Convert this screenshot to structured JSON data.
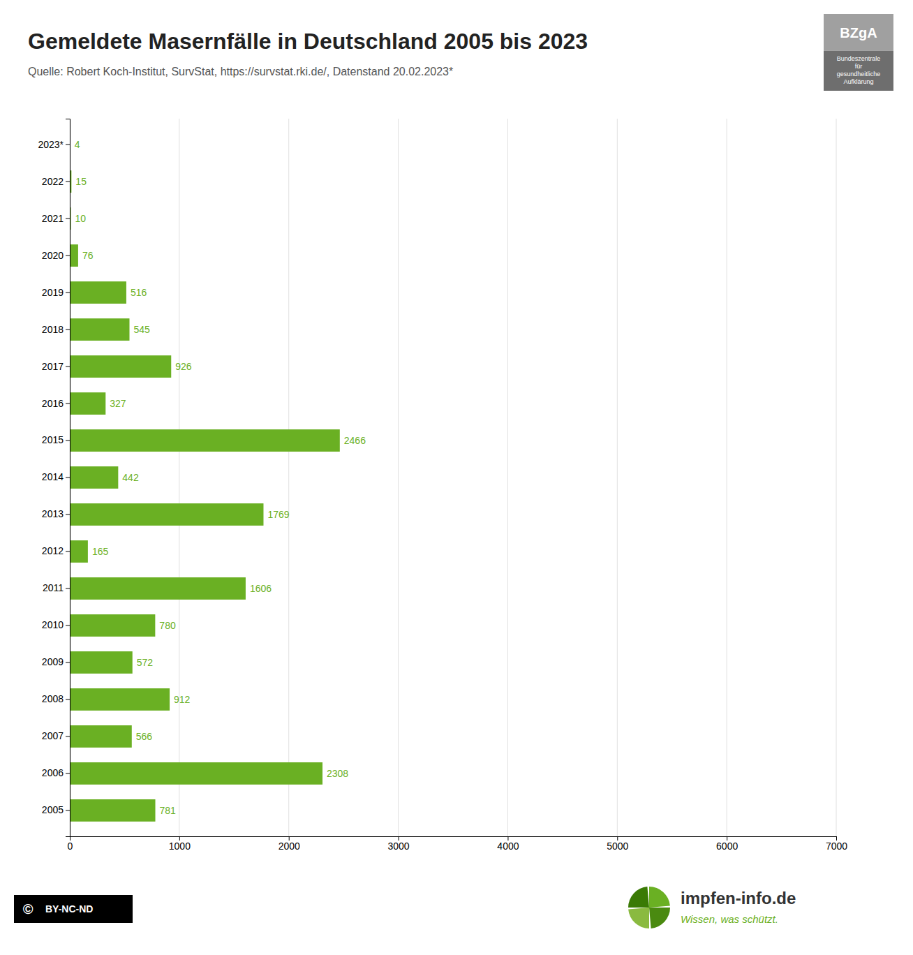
{
  "chart_data": {
    "type": "bar",
    "orientation": "horizontal",
    "title": "Gemeldete Masernfälle in Deutschland 2005 bis 2023",
    "subtitle": "Quelle: Robert Koch-Institut, SurvStat, https://survstat.rki.de/, Datenstand 20.02.2023*",
    "categories": [
      "2023*",
      "2022",
      "2021",
      "2020",
      "2019",
      "2018",
      "2017",
      "2016",
      "2015",
      "2014",
      "2013",
      "2012",
      "2011",
      "2010",
      "2009",
      "2008",
      "2007",
      "2006",
      "2005"
    ],
    "values": [
      4,
      15,
      10,
      76,
      516,
      545,
      926,
      327,
      2466,
      442,
      1769,
      165,
      1606,
      780,
      572,
      912,
      566,
      2308,
      781
    ],
    "color": "#6ab023",
    "xlim": [
      0,
      7000
    ],
    "xticks": [
      0,
      1000,
      2000,
      3000,
      4000,
      5000,
      6000,
      7000
    ],
    "grid": true,
    "data_labels": true,
    "annotations": [
      "BZgA",
      "Bundeszentrale\nfür\ngesundheitliche\nAufklärung",
      "impfen-info.de",
      "Wissen, was schützt.",
      "©",
      "BY-NC-ND"
    ]
  }
}
